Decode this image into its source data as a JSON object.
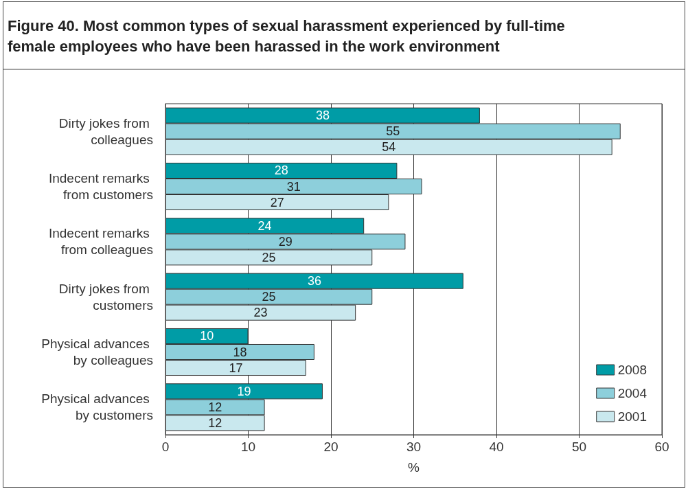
{
  "chart_data": {
    "type": "bar",
    "orientation": "horizontal",
    "title": "Figure 40. Most common types of sexual harassment experienced by full-time female employees who have been harassed in the work environment",
    "xlabel": "%",
    "categories": [
      "Dirty jokes from colleagues",
      "Indecent remarks from customers",
      "Indecent remarks from colleagues",
      "Dirty jokes from customers",
      "Physical advances by colleagues",
      "Physical advances by customers"
    ],
    "series": [
      {
        "name": "2008",
        "color": "#009ca6",
        "values": [
          38,
          28,
          24,
          36,
          10,
          19
        ]
      },
      {
        "name": "2004",
        "color": "#8dcfdb",
        "values": [
          55,
          31,
          29,
          25,
          18,
          12
        ]
      },
      {
        "name": "2001",
        "color": "#c9e8ee",
        "values": [
          54,
          27,
          25,
          23,
          17,
          12
        ]
      }
    ],
    "xlim": [
      0,
      60
    ],
    "xticks": [
      0,
      10,
      20,
      30,
      40,
      50,
      60
    ],
    "grid": "x",
    "legend": "bottom right",
    "data_labels": true
  }
}
